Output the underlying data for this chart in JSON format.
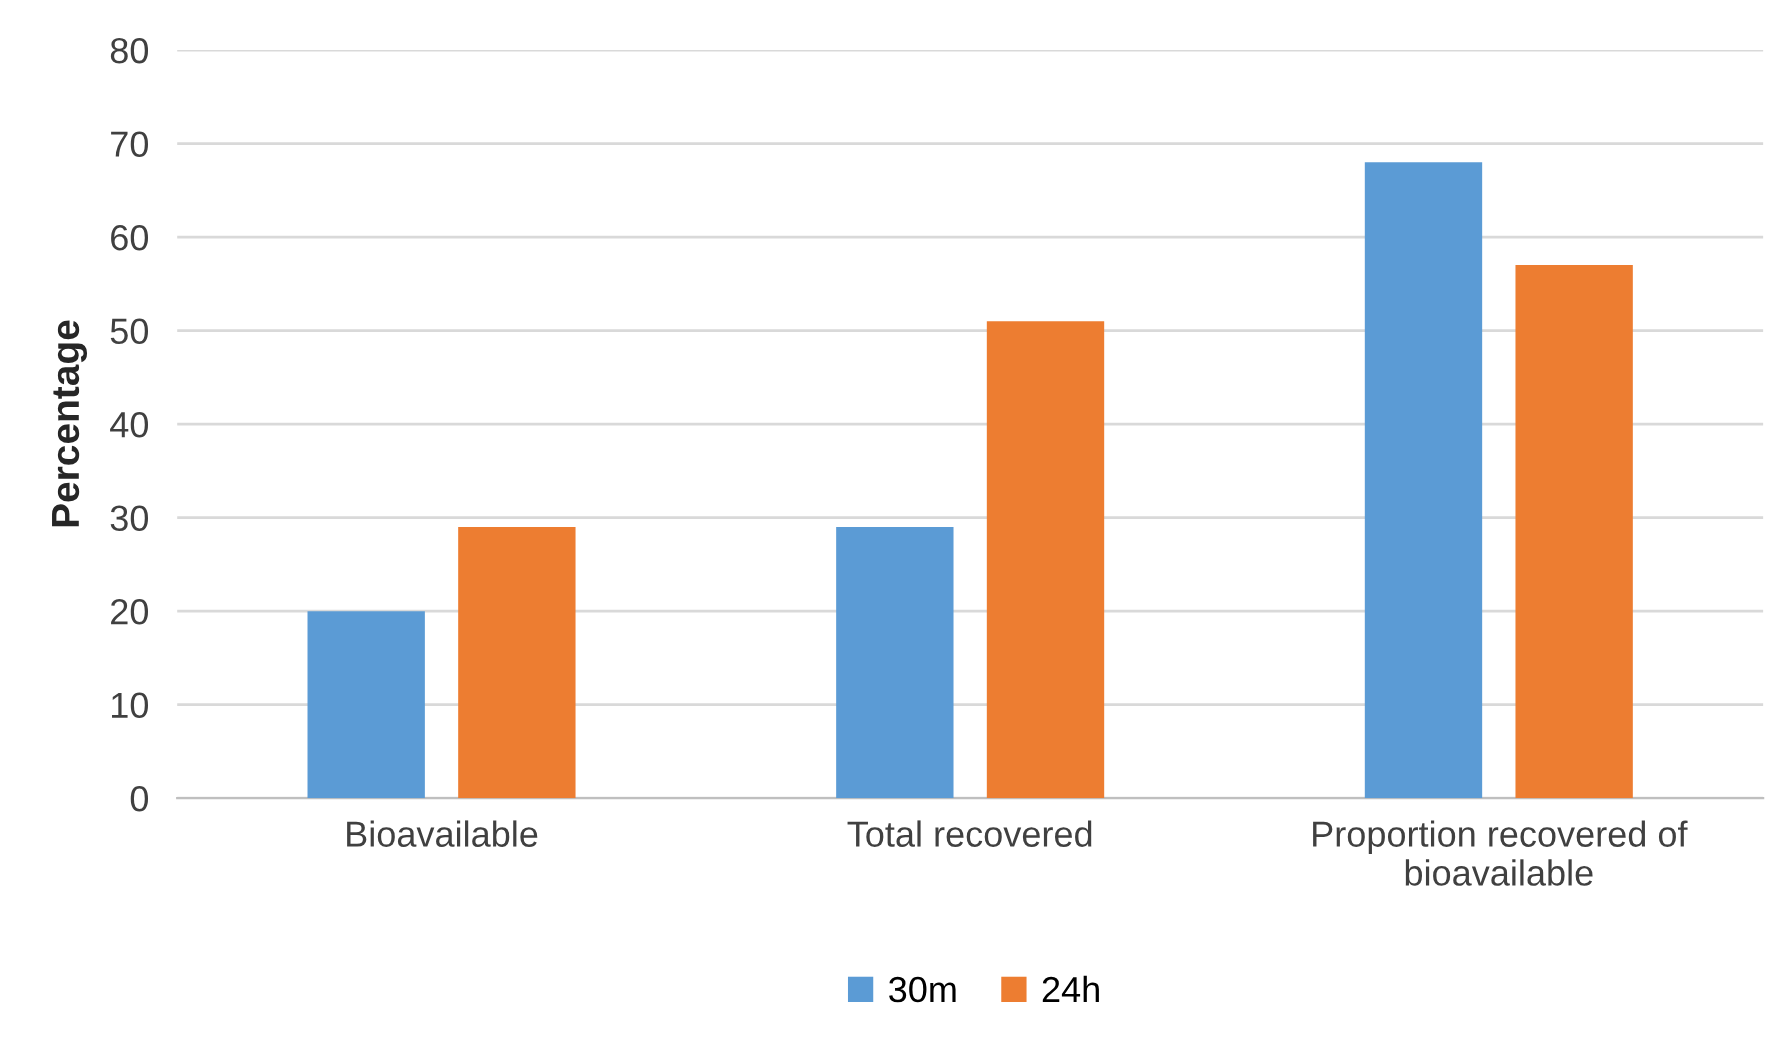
{
  "chart_data": {
    "type": "bar",
    "ylabel": "Percentage",
    "categories": [
      "Bioavailable",
      "Total recovered",
      "Proportion recovered of\nbioavailable"
    ],
    "series": [
      {
        "name": "30m",
        "color": "#5b9bd5",
        "values": [
          20,
          29,
          68
        ]
      },
      {
        "name": "24h",
        "color": "#ed7d31",
        "values": [
          29,
          51,
          57
        ]
      }
    ],
    "ylim": [
      0,
      80
    ],
    "yticks": [
      0,
      10,
      20,
      30,
      40,
      50,
      60,
      70,
      80
    ],
    "grid": "y",
    "legend": "bottom"
  }
}
